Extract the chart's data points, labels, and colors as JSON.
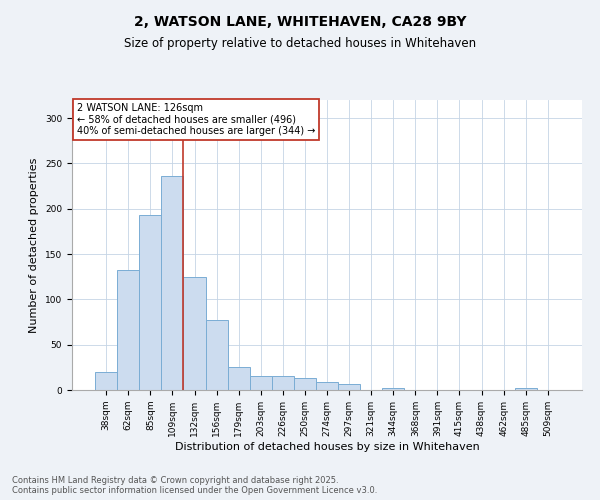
{
  "title_line1": "2, WATSON LANE, WHITEHAVEN, CA28 9BY",
  "title_line2": "Size of property relative to detached houses in Whitehaven",
  "xlabel": "Distribution of detached houses by size in Whitehaven",
  "ylabel": "Number of detached properties",
  "categories": [
    "38sqm",
    "62sqm",
    "85sqm",
    "109sqm",
    "132sqm",
    "156sqm",
    "179sqm",
    "203sqm",
    "226sqm",
    "250sqm",
    "274sqm",
    "297sqm",
    "321sqm",
    "344sqm",
    "368sqm",
    "391sqm",
    "415sqm",
    "438sqm",
    "462sqm",
    "485sqm",
    "509sqm"
  ],
  "values": [
    20,
    132,
    193,
    236,
    125,
    77,
    25,
    16,
    16,
    13,
    9,
    7,
    0,
    2,
    0,
    0,
    0,
    0,
    0,
    2,
    0
  ],
  "bar_color": "#ccdcef",
  "bar_edge_color": "#7aadd4",
  "vline_color": "#c0392b",
  "annotation_text": "2 WATSON LANE: 126sqm\n← 58% of detached houses are smaller (496)\n40% of semi-detached houses are larger (344) →",
  "annotation_box_color": "#ffffff",
  "annotation_box_edge": "#c0392b",
  "ylim": [
    0,
    320
  ],
  "yticks": [
    0,
    50,
    100,
    150,
    200,
    250,
    300
  ],
  "footnote": "Contains HM Land Registry data © Crown copyright and database right 2025.\nContains public sector information licensed under the Open Government Licence v3.0.",
  "background_color": "#eef2f7",
  "plot_bg_color": "#ffffff",
  "title_fontsize": 10,
  "subtitle_fontsize": 8.5,
  "xlabel_fontsize": 8,
  "ylabel_fontsize": 8,
  "tick_fontsize": 6.5,
  "annot_fontsize": 7,
  "footnote_fontsize": 6
}
